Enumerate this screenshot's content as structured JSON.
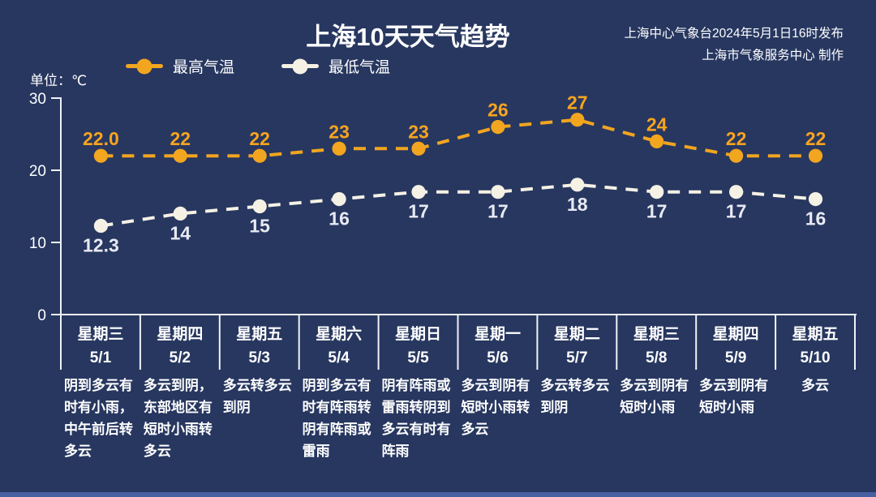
{
  "chart_data": {
    "type": "line",
    "title": "上海10天天气趋势",
    "source_line1": "上海中心气象台2024年5月1日16时发布",
    "source_line2": "上海市气象服务中心 制作",
    "unit_label": "单位：℃",
    "ylim": [
      0,
      30
    ],
    "y_ticks": [
      0,
      10,
      20,
      30
    ],
    "grid": "off",
    "legend_position": "top-left",
    "colors": {
      "background": "#273760",
      "axis": "#f0f2f7",
      "accent_bar": "#4660a0",
      "max_series": "#f2a51f",
      "max_label": "#f8a41e",
      "min_series": "#f5f1e4",
      "min_label": "#e8eaf2"
    },
    "legend": [
      {
        "id": "max-temp",
        "name": "最高气温",
        "color": "#f2a51f"
      },
      {
        "id": "min-temp",
        "name": "最低气温",
        "color": "#f5f1e4"
      }
    ],
    "categories": [
      {
        "week": "星期三",
        "date": "5/1"
      },
      {
        "week": "星期四",
        "date": "5/2"
      },
      {
        "week": "星期五",
        "date": "5/3"
      },
      {
        "week": "星期六",
        "date": "5/4"
      },
      {
        "week": "星期日",
        "date": "5/5"
      },
      {
        "week": "星期一",
        "date": "5/6"
      },
      {
        "week": "星期二",
        "date": "5/7"
      },
      {
        "week": "星期三",
        "date": "5/8"
      },
      {
        "week": "星期四",
        "date": "5/9"
      },
      {
        "week": "星期五",
        "date": "5/10"
      }
    ],
    "series": [
      {
        "id": "max-temp",
        "name": "最高气温",
        "values": [
          22.0,
          22,
          22,
          23,
          23,
          26,
          27,
          24,
          22,
          22
        ],
        "labels": [
          "22.0",
          "22",
          "22",
          "23",
          "23",
          "26",
          "27",
          "24",
          "22",
          "22"
        ],
        "label_side": "above"
      },
      {
        "id": "min-temp",
        "name": "最低气温",
        "values": [
          12.3,
          14,
          15,
          16,
          17,
          17,
          18,
          17,
          17,
          16
        ],
        "labels": [
          "12.3",
          "14",
          "15",
          "16",
          "17",
          "17",
          "18",
          "17",
          "17",
          "16"
        ],
        "label_side": "below"
      }
    ],
    "weather": [
      "阴到多云有时有小雨，中午前后转多云",
      "多云到阴，东部地区有短时小雨转多云",
      "多云转多云到阴",
      "阴到多云有时有阵雨转阴有阵雨或雷雨",
      "阴有阵雨或雷雨转阴到多云有时有阵雨",
      "多云到阴有短时小雨转多云",
      "多云转多云到阴",
      "多云到阴有短时小雨",
      "多云到阴有短时小雨",
      "多云"
    ]
  }
}
